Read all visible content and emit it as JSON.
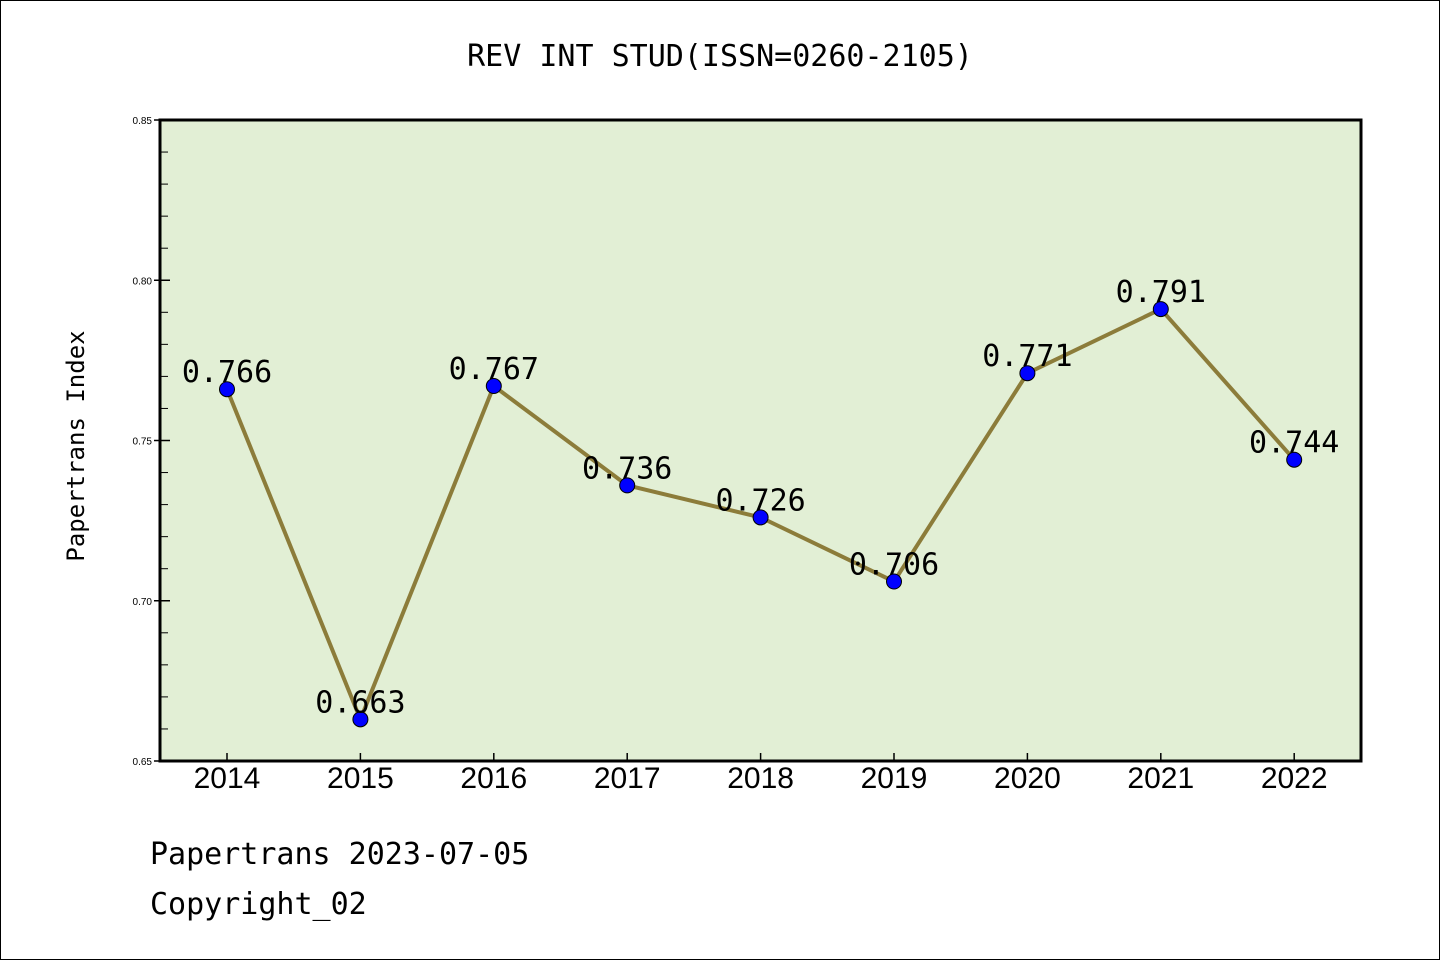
{
  "chart_data": {
    "type": "line",
    "title": "REV INT STUD(ISSN=0260-2105)",
    "ylabel": "Papertrans Index",
    "xlabel": "",
    "x": [
      "2014",
      "2015",
      "2016",
      "2017",
      "2018",
      "2019",
      "2020",
      "2021",
      "2022"
    ],
    "series": [
      {
        "values": [
          0.766,
          0.663,
          0.767,
          0.736,
          0.726,
          0.706,
          0.771,
          0.791,
          0.744
        ]
      }
    ],
    "data_labels": [
      "0.766",
      "0.663",
      "0.767",
      "0.736",
      "0.726",
      "0.706",
      "0.771",
      "0.791",
      "0.744"
    ],
    "ylim": [
      0.65,
      0.85
    ],
    "yticks": [
      0.65,
      0.7,
      0.75,
      0.8,
      0.85
    ],
    "ytick_labels": [
      "0.65",
      "0.70",
      "0.75",
      "0.80",
      "0.85"
    ],
    "grid": false,
    "legend": "none",
    "colors": {
      "plot_background": "#e2efd5",
      "line": "#8c7c3a",
      "marker": "#0000ff"
    }
  },
  "footer": {
    "line1": "Papertrans 2023-07-05",
    "line2": "Copyright_02"
  }
}
